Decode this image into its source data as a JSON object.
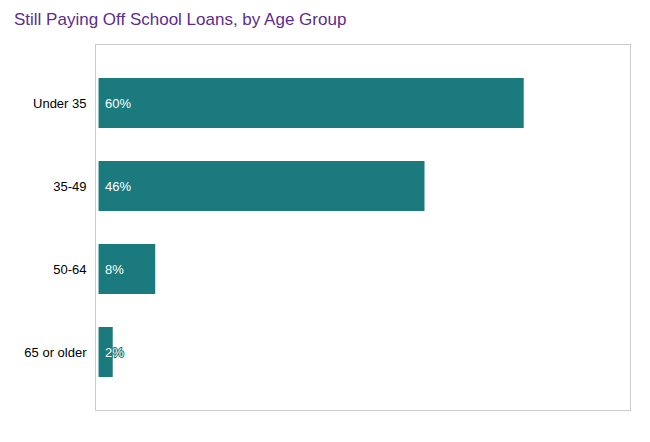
{
  "chart_data": {
    "type": "bar",
    "orientation": "horizontal",
    "title": "Still Paying Off School Loans, by Age Group",
    "categories": [
      "Under 35",
      "35-49",
      "50-64",
      "65 or older"
    ],
    "values": [
      60,
      46,
      8,
      2
    ],
    "value_labels": [
      "60%",
      "46%",
      "8%",
      "2%"
    ],
    "data_labels": true,
    "color": "#1a7a7e",
    "xlim": [
      -0.5,
      75
    ],
    "tick_labels": "y",
    "grid": false
  }
}
